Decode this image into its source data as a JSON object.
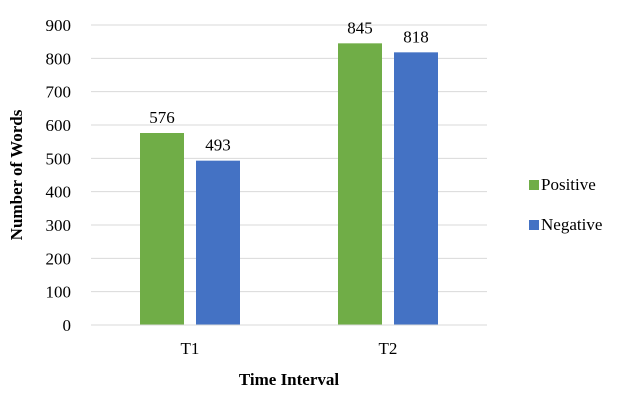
{
  "chart_data": {
    "type": "bar",
    "title": "",
    "xlabel": "Time Interval",
    "ylabel": "Number of Words",
    "categories": [
      "T1",
      "T2"
    ],
    "series": [
      {
        "name": "Positive",
        "values": [
          576,
          845
        ],
        "color": "#70AD47"
      },
      {
        "name": "Negative",
        "values": [
          493,
          818
        ],
        "color": "#4472C4"
      }
    ],
    "ylim": [
      0,
      900
    ],
    "yticks": [
      0,
      100,
      200,
      300,
      400,
      500,
      600,
      700,
      800,
      900
    ],
    "grid": true,
    "gridline_color": "#D9D9D9",
    "legend_position": "right",
    "data_labels": true
  }
}
